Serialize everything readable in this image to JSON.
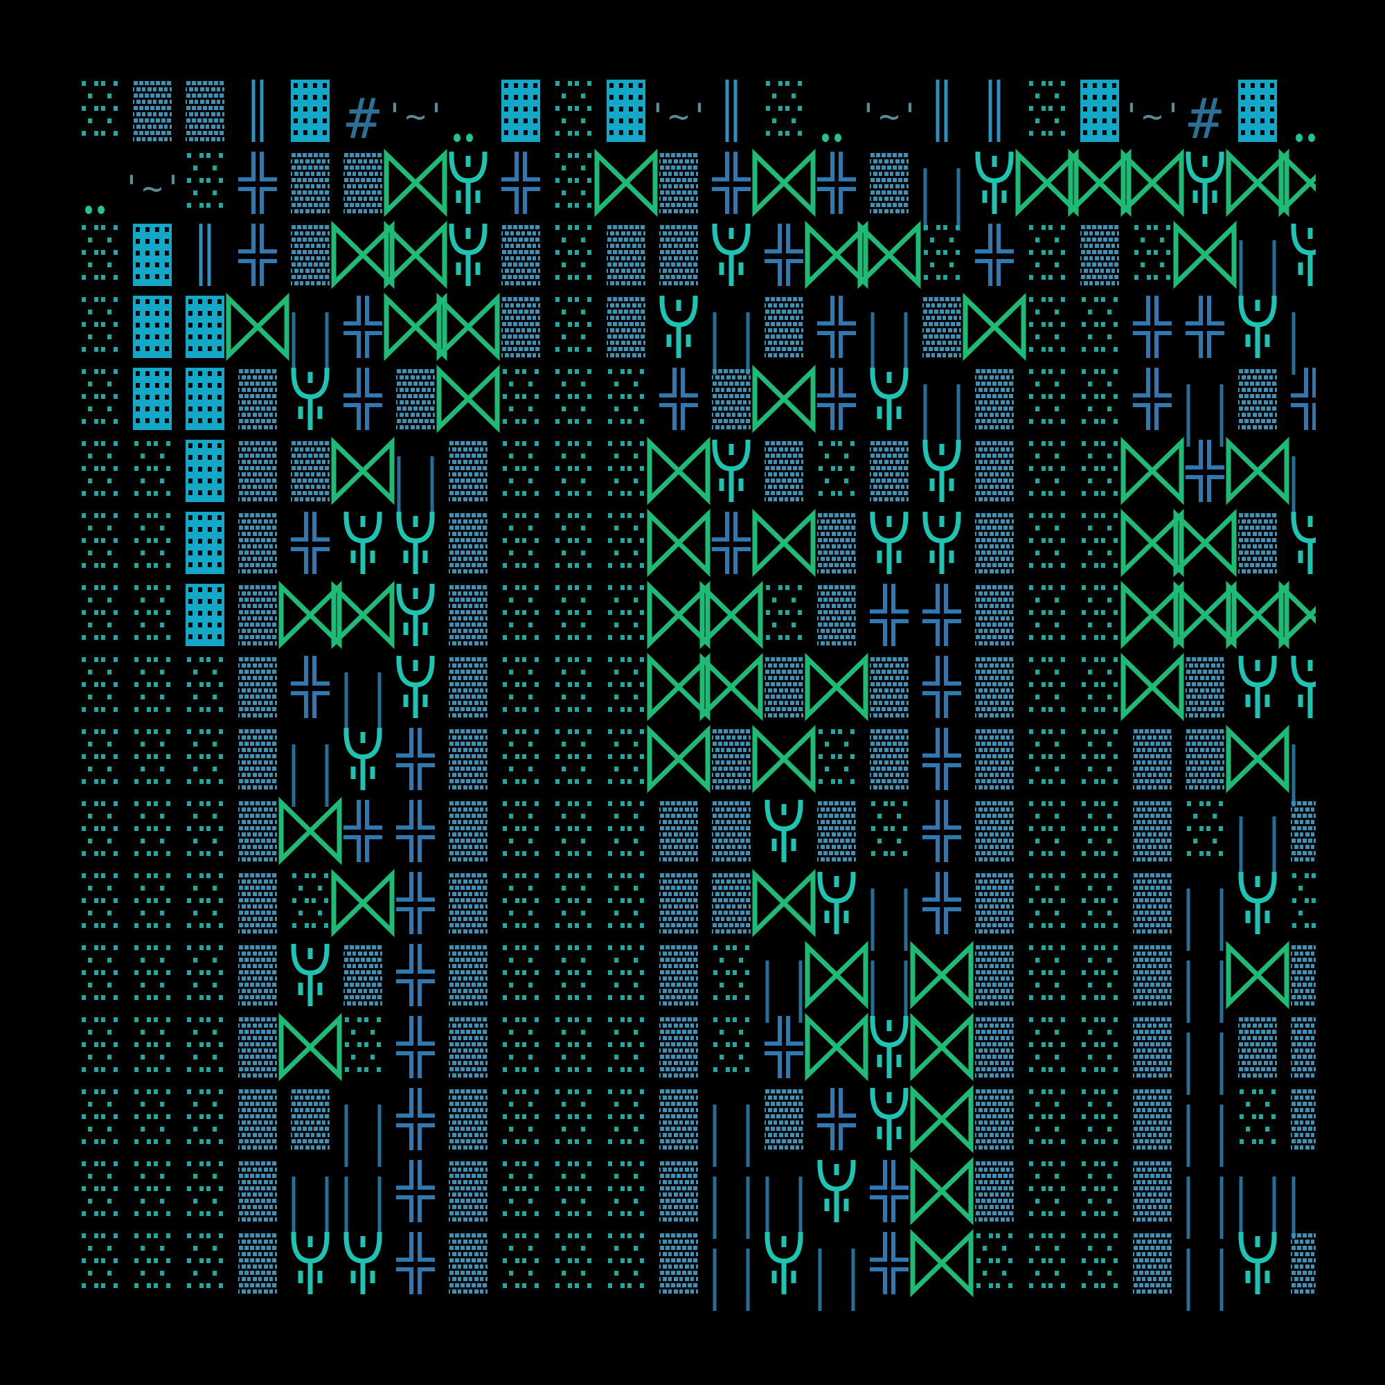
{
  "background": "#000000",
  "glyph_legend": {
    ".": {
      "name": "light-shade",
      "color": "#1fa9a0"
    },
    ":": {
      "name": "medium-shade",
      "color": "#3793b8"
    },
    "#": {
      "name": "dark-shade",
      "color": "#14a8c8"
    },
    "H": {
      "name": "double-bar",
      "color": "#2f90c0"
    },
    "+": {
      "name": "double-cross",
      "color": "#2f78b0"
    },
    "Y": {
      "name": "trident",
      "color": "#1dc4b2"
    },
    "X": {
      "name": "bowtie",
      "color": "#1dbb76"
    },
    "I": {
      "name": "tall-bar-pair",
      "color": "#22709a"
    },
    "T": {
      "name": "tilde-quote",
      "color": "#5a8a94",
      "char": "'~'"
    },
    "S": {
      "name": "hash-sign",
      "color": "#2a7095",
      "char": "#"
    },
    "D": {
      "name": "double-dot",
      "color": "#1fc49a"
    },
    " ": {
      "name": "empty",
      "color": "#000000"
    }
  },
  "grid": [
    ".::H#STD#.#TH.DTHH.#TS#D",
    "DT.+::XY+.X:+X+:IYXXXYXX",
    ".#H+:XXY:.::Y+XX.+.:.XIY",
    ".##XI+XX:.:YI:+I:X..++YI",
    ".##:Y+:X...+:X+YI:..+I:+",
    "..#::XI:...XY:.:Y:..X+XI",
    "..#:+YY:...X+X:YY:..XX:Y",
    "..#:XXY:...XX.:++:..XXXX",
    "...:+IY:...XX:X:+:..X:YY",
    "...:IY+:...X:X.:+:..::XI",
    "...:X++:...::Y:.+:..:.I:",
    "...:.X+:...::XYI+:..:IY.",
    "...:Y:+:...:.IXIX:..:IX:",
    "...:X.+:...:.+XYX:..:I::",
    "...::I+:...:I:+YX:..:I.:",
    "...:II+:...:IIY+X:..:III",
    "...:YY+:...:IYI+X...:IY:"
  ]
}
